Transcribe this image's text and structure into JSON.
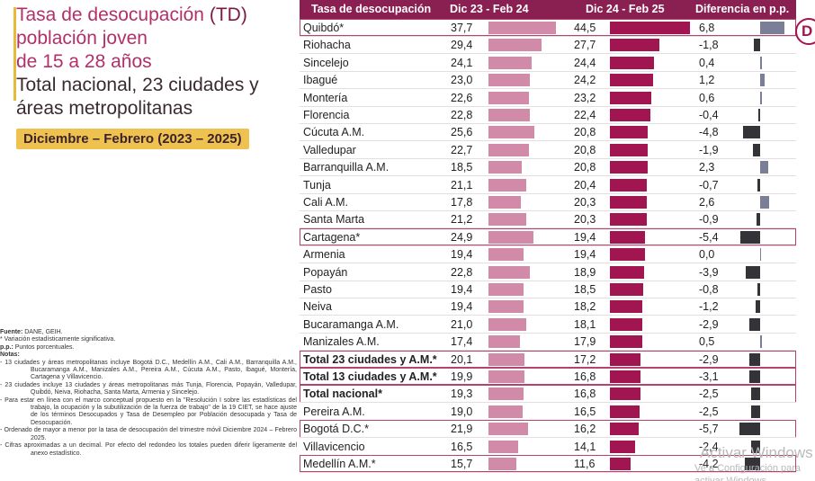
{
  "title": {
    "line1": "Tasa de desocupación",
    "line1_acronym": "(TD)",
    "line2": "población joven",
    "line3": "de 15 a 28 años",
    "line4": "Total nacional, 23 ciudades y",
    "line5": "áreas metropolitanas",
    "period": "Diciembre – Febrero (2023 – 2025)"
  },
  "notes": {
    "source_label": "Fuente:",
    "source": "DANE, GEIH.",
    "significance": "* Variación estadísticamente significativa.",
    "pp_label": "p.p.:",
    "pp": "Puntos porcentuales.",
    "notes_label": "Notas:",
    "items": [
      "- 13 ciudades y áreas metropolitanas incluye Bogotá D.C., Medellín A.M., Cali A.M., Barranquilla A.M., Bucaramanga A.M., Manizales A.M., Pereira A.M., Cúcuta A.M., Pasto, Ibagué, Montería, Cartagena y Villavicencio.",
      "- 23 ciudades incluye 13 ciudades y áreas metropolitanas más Tunja, Florencia, Popayán, Valledupar, Quibdó, Neiva, Riohacha, Santa Marta, Armenia y Sincelejo.",
      "- Para estar en línea con el marco conceptual propuesto en la \"Resolución I sobre las estadísticas del trabajo, la ocupación y la subutilización de la fuerza de trabajo\" de la 19 CIET, se hace ajuste de los términos Desocupados y Tasa de Desempleo por Población desocupada y Tasa de Desocupación.",
      "- Ordenado de mayor a menor por la tasa de desocupación del trimestre móvil Diciembre 2024 – Febrero 2025.",
      "- Cifras aproximadas a un decimal. Por efecto del redondeo los totales pueden diferir ligeramente del anexo estadístico."
    ]
  },
  "table": {
    "headers": {
      "name": "Tasa de desocupación",
      "period1": "Dic 23 - Feb 24",
      "period2": "Dic 24 - Feb 25",
      "diff": "Diferencia en p.p."
    },
    "rows": [
      {
        "name": "Quibdó*",
        "v1": "37,7",
        "v2": "44,5",
        "diff": "6,8",
        "n1": 37.7,
        "n2": 44.5,
        "nd": 6.8,
        "boxed": true,
        "bold": false
      },
      {
        "name": "Riohacha",
        "v1": "29,4",
        "v2": "27,7",
        "diff": "-1,8",
        "n1": 29.4,
        "n2": 27.7,
        "nd": -1.8,
        "boxed": false,
        "bold": false
      },
      {
        "name": "Sincelejo",
        "v1": "24,1",
        "v2": "24,4",
        "diff": "0,4",
        "n1": 24.1,
        "n2": 24.4,
        "nd": 0.4,
        "boxed": false,
        "bold": false
      },
      {
        "name": "Ibagué",
        "v1": "23,0",
        "v2": "24,2",
        "diff": "1,2",
        "n1": 23.0,
        "n2": 24.2,
        "nd": 1.2,
        "boxed": false,
        "bold": false
      },
      {
        "name": "Montería",
        "v1": "22,6",
        "v2": "23,2",
        "diff": "0,6",
        "n1": 22.6,
        "n2": 23.2,
        "nd": 0.6,
        "boxed": false,
        "bold": false
      },
      {
        "name": "Florencia",
        "v1": "22,8",
        "v2": "22,4",
        "diff": "-0,4",
        "n1": 22.8,
        "n2": 22.4,
        "nd": -0.4,
        "boxed": false,
        "bold": false
      },
      {
        "name": "Cúcuta A.M.",
        "v1": "25,6",
        "v2": "20,8",
        "diff": "-4,8",
        "n1": 25.6,
        "n2": 20.8,
        "nd": -4.8,
        "boxed": false,
        "bold": false
      },
      {
        "name": "Valledupar",
        "v1": "22,7",
        "v2": "20,8",
        "diff": "-1,9",
        "n1": 22.7,
        "n2": 20.8,
        "nd": -1.9,
        "boxed": false,
        "bold": false
      },
      {
        "name": "Barranquilla A.M.",
        "v1": "18,5",
        "v2": "20,8",
        "diff": "2,3",
        "n1": 18.5,
        "n2": 20.8,
        "nd": 2.3,
        "boxed": false,
        "bold": false
      },
      {
        "name": "Tunja",
        "v1": "21,1",
        "v2": "20,4",
        "diff": "-0,7",
        "n1": 21.1,
        "n2": 20.4,
        "nd": -0.7,
        "boxed": false,
        "bold": false
      },
      {
        "name": "Cali A.M.",
        "v1": "17,8",
        "v2": "20,3",
        "diff": "2,6",
        "n1": 17.8,
        "n2": 20.3,
        "nd": 2.6,
        "boxed": false,
        "bold": false
      },
      {
        "name": "Santa Marta",
        "v1": "21,2",
        "v2": "20,3",
        "diff": "-0,9",
        "n1": 21.2,
        "n2": 20.3,
        "nd": -0.9,
        "boxed": false,
        "bold": false
      },
      {
        "name": "Cartagena*",
        "v1": "24,9",
        "v2": "19,4",
        "diff": "-5,4",
        "n1": 24.9,
        "n2": 19.4,
        "nd": -5.4,
        "boxed": true,
        "bold": false
      },
      {
        "name": "Armenia",
        "v1": "19,4",
        "v2": "19,4",
        "diff": "0,0",
        "n1": 19.4,
        "n2": 19.4,
        "nd": 0.0,
        "boxed": false,
        "bold": false
      },
      {
        "name": "Popayán",
        "v1": "22,8",
        "v2": "18,9",
        "diff": "-3,9",
        "n1": 22.8,
        "n2": 18.9,
        "nd": -3.9,
        "boxed": false,
        "bold": false
      },
      {
        "name": "Pasto",
        "v1": "19,4",
        "v2": "18,5",
        "diff": "-0,8",
        "n1": 19.4,
        "n2": 18.5,
        "nd": -0.8,
        "boxed": false,
        "bold": false
      },
      {
        "name": "Neiva",
        "v1": "19,4",
        "v2": "18,2",
        "diff": "-1,2",
        "n1": 19.4,
        "n2": 18.2,
        "nd": -1.2,
        "boxed": false,
        "bold": false
      },
      {
        "name": "Bucaramanga A.M.",
        "v1": "21,0",
        "v2": "18,1",
        "diff": "-2,9",
        "n1": 21.0,
        "n2": 18.1,
        "nd": -2.9,
        "boxed": false,
        "bold": false
      },
      {
        "name": "Manizales A.M.",
        "v1": "17,4",
        "v2": "17,9",
        "diff": "0,5",
        "n1": 17.4,
        "n2": 17.9,
        "nd": 0.5,
        "boxed": false,
        "bold": false
      },
      {
        "name": "Total 23 ciudades y A.M.*",
        "v1": "20,1",
        "v2": "17,2",
        "diff": "-2,9",
        "n1": 20.1,
        "n2": 17.2,
        "nd": -2.9,
        "boxed": true,
        "bold": true
      },
      {
        "name": "Total 13 ciudades y A.M.*",
        "v1": "19,9",
        "v2": "16,8",
        "diff": "-3,1",
        "n1": 19.9,
        "n2": 16.8,
        "nd": -3.1,
        "boxed": true,
        "bold": true
      },
      {
        "name": "Total nacional*",
        "v1": "19,3",
        "v2": "16,8",
        "diff": "-2,5",
        "n1": 19.3,
        "n2": 16.8,
        "nd": -2.5,
        "boxed": true,
        "bold": true
      },
      {
        "name": "Pereira A.M.",
        "v1": "19,0",
        "v2": "16,5",
        "diff": "-2,5",
        "n1": 19.0,
        "n2": 16.5,
        "nd": -2.5,
        "boxed": false,
        "bold": false
      },
      {
        "name": "Bogotá D.C.*",
        "v1": "21,9",
        "v2": "16,2",
        "diff": "-5,7",
        "n1": 21.9,
        "n2": 16.2,
        "nd": -5.7,
        "boxed": true,
        "bold": false
      },
      {
        "name": "Villavicencio",
        "v1": "16,5",
        "v2": "14,1",
        "diff": "-2,4",
        "n1": 16.5,
        "n2": 14.1,
        "nd": -2.4,
        "boxed": false,
        "bold": false
      },
      {
        "name": "Medellín A.M.*",
        "v1": "15,7",
        "v2": "11,6",
        "diff": "-4,2",
        "n1": 15.7,
        "n2": 11.6,
        "nd": -4.2,
        "boxed": true,
        "bold": false
      }
    ]
  },
  "corner_logo": "D",
  "watermark": {
    "line1": "Activar Windows",
    "line2": "Ve a Configuración para activar Windows."
  },
  "colors": {
    "title": "#b2306a",
    "header_bg": "#8a1f52",
    "bar_period1": "#d28aa9",
    "bar_period2": "#a11651",
    "diff_positive": "#7b7e97",
    "diff_negative": "#333338",
    "badge": "#efc14f",
    "box_outline": "#b5426f"
  }
}
